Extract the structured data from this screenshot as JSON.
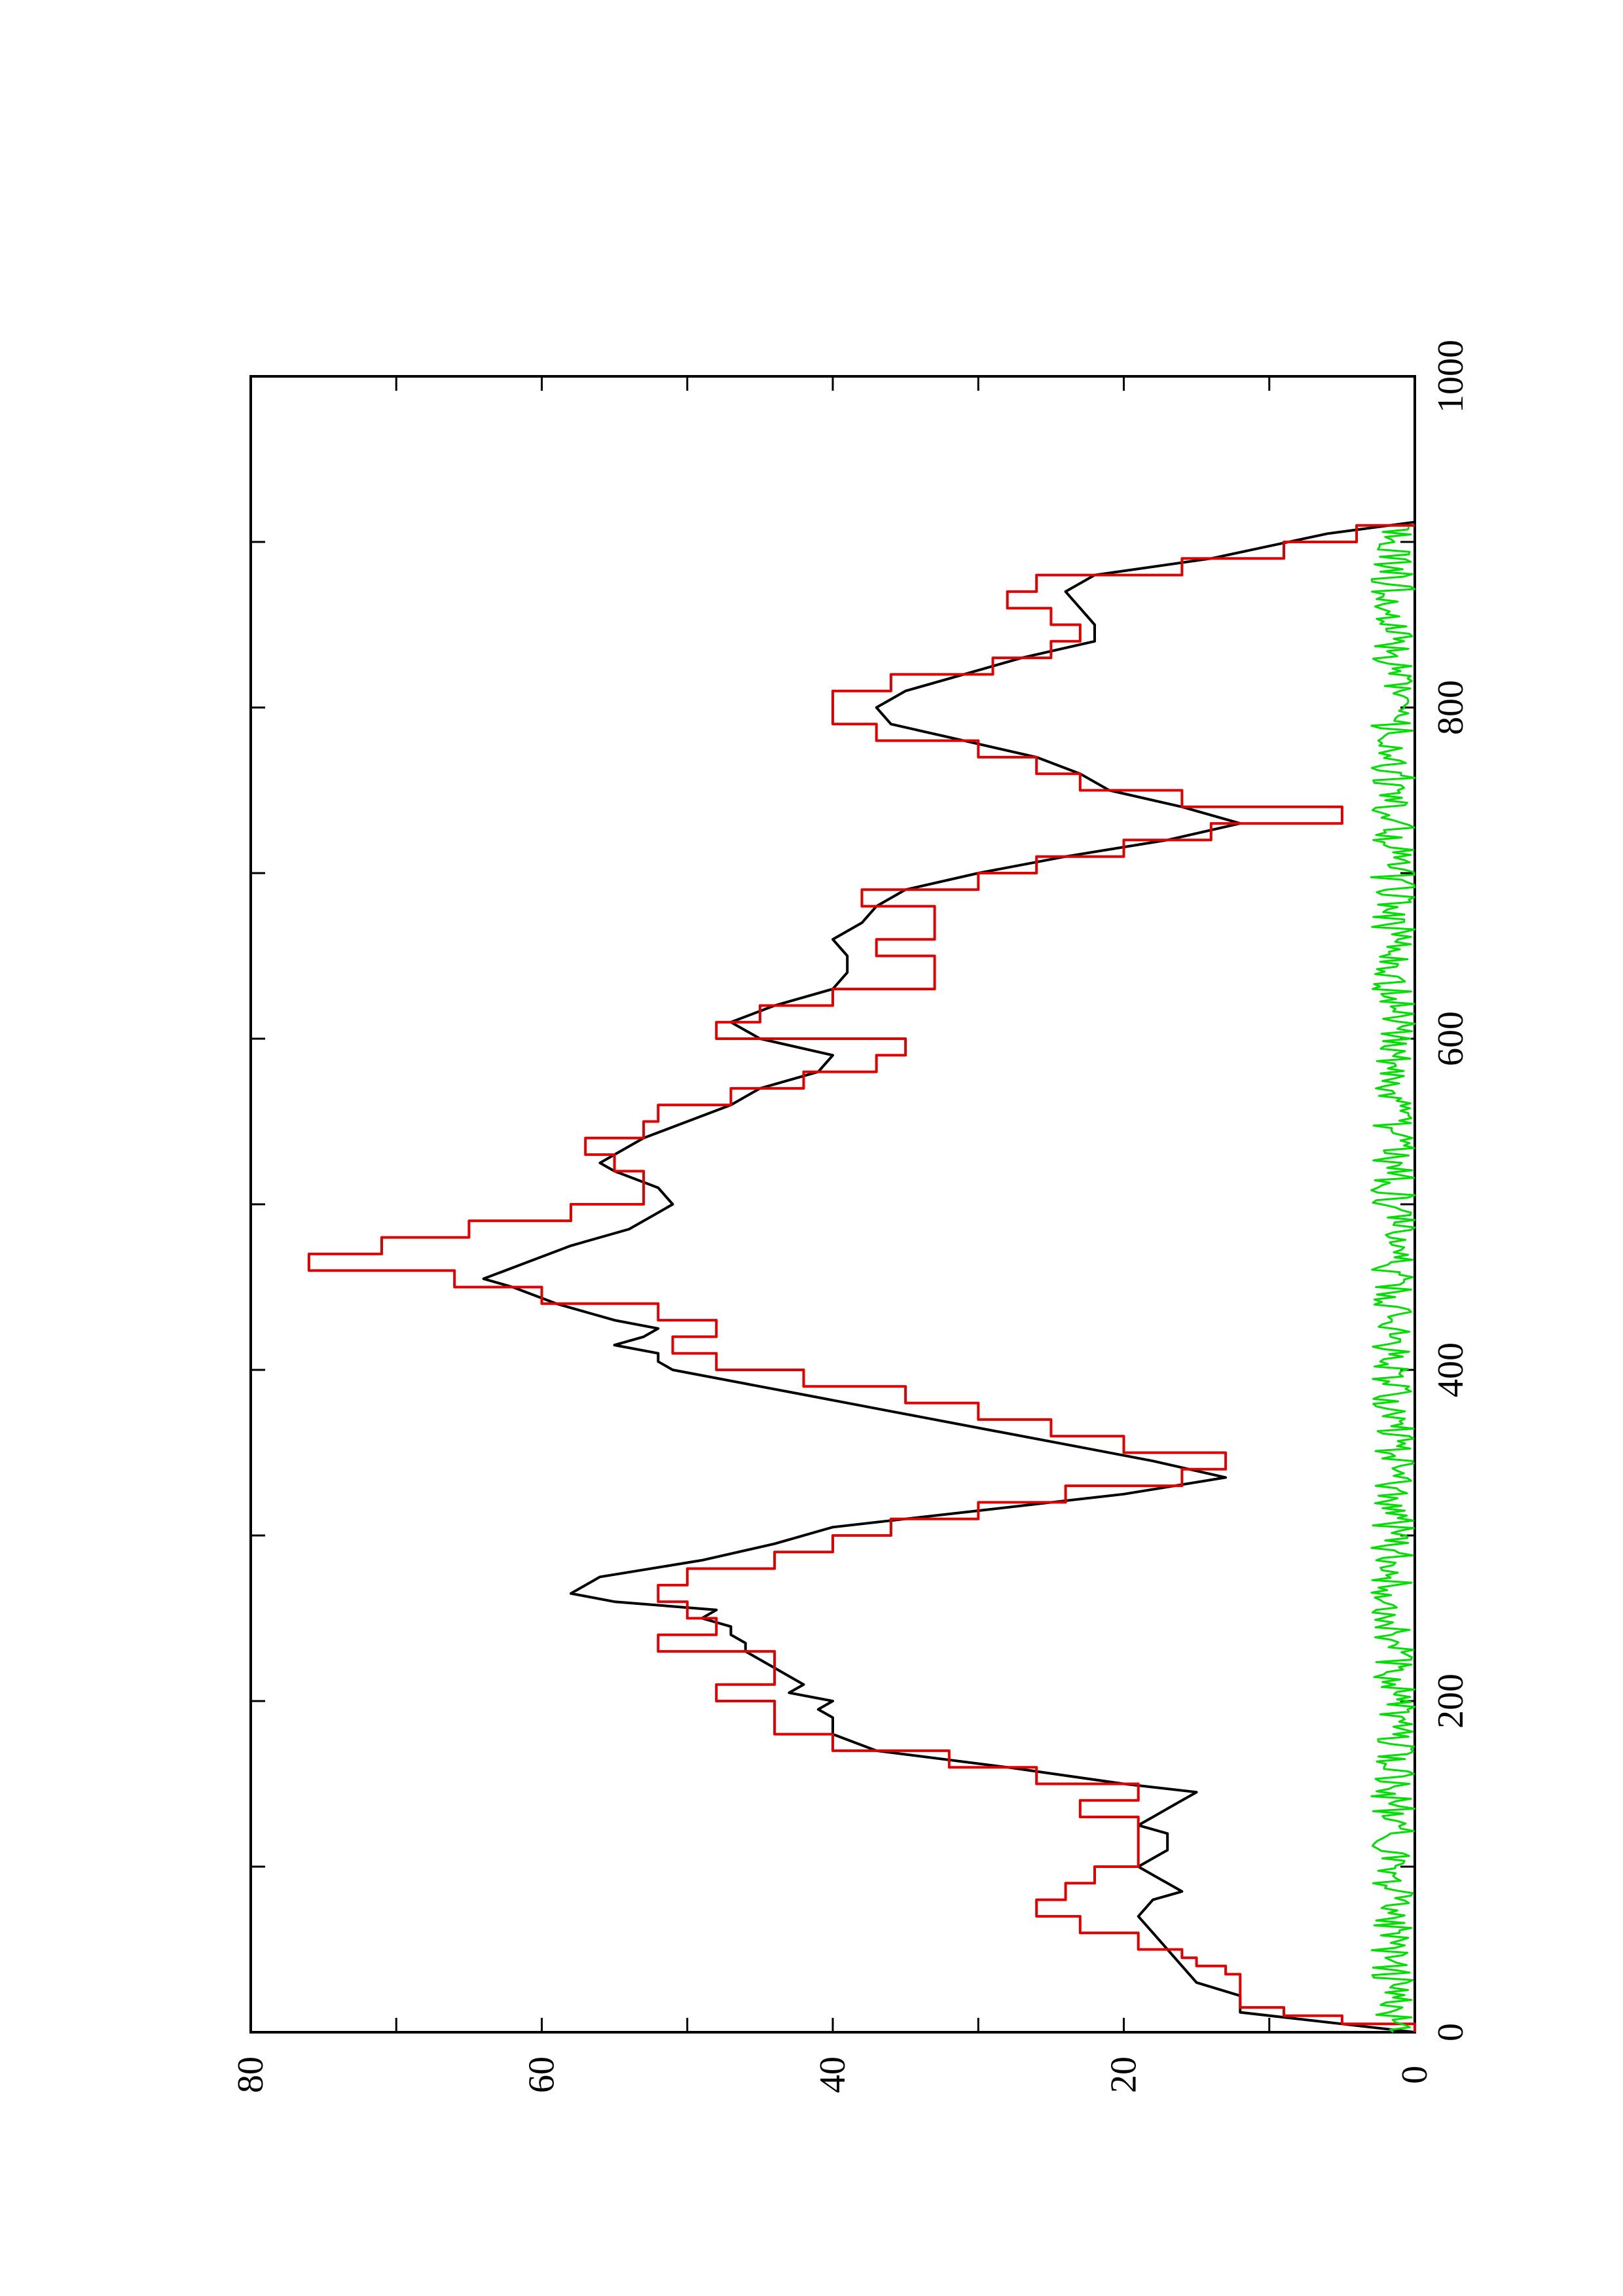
{
  "chart_data": {
    "type": "line",
    "orientation": "rotated-90-ccw",
    "title": "",
    "xlabel": "",
    "ylabel": "",
    "xlim": [
      0,
      1000
    ],
    "ylim": [
      0,
      80
    ],
    "x_ticks": [
      "0",
      "200",
      "400",
      "600",
      "800",
      "1000"
    ],
    "y_ticks": [
      "0",
      "20",
      "40",
      "60",
      "80"
    ],
    "grid": false,
    "legend": "none",
    "series": [
      {
        "color": "#000000",
        "style": "line",
        "points": [
          [
            0,
            0
          ],
          [
            5,
            5
          ],
          [
            12,
            12
          ],
          [
            22,
            12
          ],
          [
            30,
            15
          ],
          [
            40,
            16
          ],
          [
            50,
            17
          ],
          [
            60,
            18
          ],
          [
            70,
            19
          ],
          [
            80,
            18
          ],
          [
            85,
            16
          ],
          [
            90,
            17
          ],
          [
            95,
            18
          ],
          [
            100,
            19
          ],
          [
            105,
            18
          ],
          [
            110,
            17
          ],
          [
            115,
            17
          ],
          [
            120,
            17
          ],
          [
            125,
            19
          ],
          [
            130,
            18
          ],
          [
            135,
            17
          ],
          [
            140,
            16
          ],
          [
            145,
            15
          ],
          [
            150,
            20
          ],
          [
            160,
            28
          ],
          [
            170,
            37
          ],
          [
            180,
            40
          ],
          [
            190,
            40
          ],
          [
            195,
            41
          ],
          [
            200,
            40
          ],
          [
            205,
            43
          ],
          [
            210,
            42
          ],
          [
            215,
            43
          ],
          [
            220,
            44
          ],
          [
            225,
            45
          ],
          [
            230,
            46
          ],
          [
            235,
            46
          ],
          [
            240,
            47
          ],
          [
            245,
            47
          ],
          [
            250,
            49
          ],
          [
            255,
            48
          ],
          [
            260,
            55
          ],
          [
            265,
            58
          ],
          [
            275,
            56
          ],
          [
            285,
            49
          ],
          [
            295,
            44
          ],
          [
            305,
            40
          ],
          [
            315,
            30
          ],
          [
            325,
            20
          ],
          [
            335,
            13
          ],
          [
            345,
            18
          ],
          [
            355,
            24
          ],
          [
            365,
            30
          ],
          [
            375,
            36
          ],
          [
            385,
            42
          ],
          [
            390,
            45
          ],
          [
            400,
            51
          ],
          [
            405,
            52
          ],
          [
            410,
            52
          ],
          [
            415,
            55
          ],
          [
            420,
            53
          ],
          [
            425,
            52
          ],
          [
            430,
            55
          ],
          [
            435,
            57
          ],
          [
            440,
            59
          ],
          [
            450,
            62
          ],
          [
            455,
            64
          ],
          [
            465,
            61
          ],
          [
            475,
            58
          ],
          [
            485,
            54
          ],
          [
            495,
            52
          ],
          [
            500,
            51
          ],
          [
            510,
            52
          ],
          [
            520,
            55
          ],
          [
            525,
            56
          ],
          [
            530,
            55
          ],
          [
            540,
            53
          ],
          [
            550,
            50
          ],
          [
            560,
            47
          ],
          [
            570,
            45
          ],
          [
            580,
            41
          ],
          [
            590,
            40
          ],
          [
            600,
            45
          ],
          [
            610,
            47
          ],
          [
            620,
            44
          ],
          [
            630,
            40
          ],
          [
            640,
            39
          ],
          [
            650,
            39
          ],
          [
            660,
            40
          ],
          [
            670,
            38
          ],
          [
            680,
            37
          ],
          [
            690,
            35
          ],
          [
            700,
            30
          ],
          [
            710,
            24
          ],
          [
            720,
            17
          ],
          [
            730,
            12
          ],
          [
            740,
            16
          ],
          [
            750,
            21
          ],
          [
            760,
            23
          ],
          [
            770,
            26
          ],
          [
            780,
            31
          ],
          [
            790,
            36
          ],
          [
            800,
            37
          ],
          [
            810,
            35
          ],
          [
            820,
            31
          ],
          [
            830,
            27
          ],
          [
            840,
            22
          ],
          [
            850,
            22
          ],
          [
            860,
            23
          ],
          [
            870,
            24
          ],
          [
            880,
            22
          ],
          [
            890,
            14
          ],
          [
            905,
            6
          ],
          [
            912,
            0
          ]
        ]
      },
      {
        "color": "#e00000",
        "style": "step",
        "points": [
          [
            0,
            0
          ],
          [
            5,
            5
          ],
          [
            10,
            9
          ],
          [
            15,
            12
          ],
          [
            30,
            12
          ],
          [
            35,
            13
          ],
          [
            40,
            15
          ],
          [
            45,
            16
          ],
          [
            50,
            19
          ],
          [
            60,
            23
          ],
          [
            70,
            26
          ],
          [
            80,
            24
          ],
          [
            90,
            22
          ],
          [
            100,
            19
          ],
          [
            110,
            19
          ],
          [
            120,
            19
          ],
          [
            130,
            23
          ],
          [
            140,
            19
          ],
          [
            150,
            26
          ],
          [
            160,
            32
          ],
          [
            170,
            40
          ],
          [
            180,
            44
          ],
          [
            190,
            44
          ],
          [
            200,
            48
          ],
          [
            210,
            44
          ],
          [
            220,
            44
          ],
          [
            230,
            52
          ],
          [
            240,
            48
          ],
          [
            250,
            50
          ],
          [
            260,
            52
          ],
          [
            270,
            50
          ],
          [
            280,
            44
          ],
          [
            290,
            40
          ],
          [
            300,
            36
          ],
          [
            310,
            30
          ],
          [
            320,
            24
          ],
          [
            330,
            16
          ],
          [
            340,
            13
          ],
          [
            350,
            20
          ],
          [
            360,
            25
          ],
          [
            370,
            30
          ],
          [
            380,
            35
          ],
          [
            390,
            42
          ],
          [
            400,
            48
          ],
          [
            410,
            51
          ],
          [
            420,
            48
          ],
          [
            430,
            52
          ],
          [
            440,
            60
          ],
          [
            450,
            66
          ],
          [
            460,
            76
          ],
          [
            470,
            71
          ],
          [
            480,
            65
          ],
          [
            490,
            58
          ],
          [
            500,
            53
          ],
          [
            510,
            53
          ],
          [
            520,
            55
          ],
          [
            530,
            57
          ],
          [
            540,
            53
          ],
          [
            550,
            52
          ],
          [
            560,
            47
          ],
          [
            570,
            42
          ],
          [
            580,
            37
          ],
          [
            590,
            35
          ],
          [
            600,
            48
          ],
          [
            610,
            45
          ],
          [
            620,
            40
          ],
          [
            630,
            33
          ],
          [
            640,
            33
          ],
          [
            650,
            37
          ],
          [
            660,
            33
          ],
          [
            670,
            33
          ],
          [
            680,
            38
          ],
          [
            690,
            30
          ],
          [
            700,
            26
          ],
          [
            710,
            20
          ],
          [
            720,
            14
          ],
          [
            730,
            5
          ],
          [
            740,
            16
          ],
          [
            750,
            23
          ],
          [
            760,
            26
          ],
          [
            770,
            30
          ],
          [
            780,
            37
          ],
          [
            790,
            40
          ],
          [
            800,
            40
          ],
          [
            810,
            36
          ],
          [
            820,
            29
          ],
          [
            830,
            25
          ],
          [
            840,
            23
          ],
          [
            850,
            25
          ],
          [
            860,
            28
          ],
          [
            870,
            26
          ],
          [
            880,
            16
          ],
          [
            890,
            9
          ],
          [
            900,
            4
          ],
          [
            910,
            0
          ]
        ]
      },
      {
        "color": "#00dd00",
        "style": "noise",
        "amplitude": 3,
        "x_range": [
          0,
          910
        ]
      }
    ]
  }
}
